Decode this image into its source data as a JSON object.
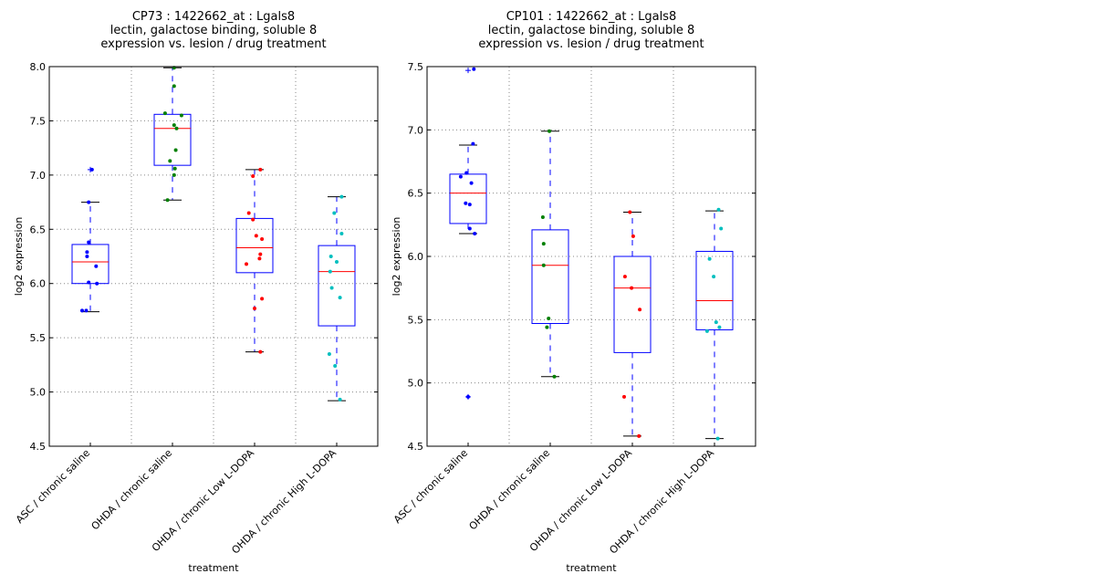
{
  "chart_data": [
    {
      "type": "box",
      "title_lines": [
        "CP73 : 1422662_at : Lgals8",
        "lectin, galactose binding, soluble 8",
        "expression vs. lesion / drug treatment"
      ],
      "xlabel": "treatment",
      "ylabel": "log2 expression",
      "ylim": [
        4.5,
        8.0
      ],
      "yticks": [
        "4.5",
        "5.0",
        "5.5",
        "6.0",
        "6.5",
        "7.0",
        "7.5",
        "8.0"
      ],
      "grid": true,
      "categories": [
        "ASC / chronic saline",
        "OHDA / chronic saline",
        "OHDA / chronic Low L-DOPA",
        "OHDA / chronic High L-DOPA"
      ],
      "colors": [
        "#0000ff",
        "#008000",
        "#ff0000",
        "#00bfbf"
      ],
      "boxes": [
        {
          "q1": 6.0,
          "median": 6.2,
          "q3": 6.36,
          "whisker_low": 5.74,
          "whisker_high": 6.75,
          "outliers": [
            7.05
          ]
        },
        {
          "q1": 7.09,
          "median": 7.43,
          "q3": 7.56,
          "whisker_low": 6.77,
          "whisker_high": 7.99,
          "outliers": []
        },
        {
          "q1": 6.1,
          "median": 6.33,
          "q3": 6.6,
          "whisker_low": 5.37,
          "whisker_high": 7.05,
          "outliers": []
        },
        {
          "q1": 5.61,
          "median": 6.11,
          "q3": 6.35,
          "whisker_low": 4.92,
          "whisker_high": 6.8,
          "outliers": []
        }
      ],
      "points": [
        [
          {
            "x": 0.02,
            "y": 7.05
          },
          {
            "x": -0.02,
            "y": 6.75
          },
          {
            "x": -0.02,
            "y": 6.38
          },
          {
            "x": -0.04,
            "y": 6.29
          },
          {
            "x": -0.04,
            "y": 6.25
          },
          {
            "x": 0.07,
            "y": 6.16
          },
          {
            "x": -0.02,
            "y": 6.01
          },
          {
            "x": 0.08,
            "y": 6.0
          },
          {
            "x": -0.1,
            "y": 5.75
          },
          {
            "x": -0.05,
            "y": 5.75
          }
        ],
        [
          {
            "x": 0.02,
            "y": 7.99
          },
          {
            "x": 0.02,
            "y": 7.82
          },
          {
            "x": -0.09,
            "y": 7.57
          },
          {
            "x": 0.11,
            "y": 7.55
          },
          {
            "x": 0.02,
            "y": 7.46
          },
          {
            "x": 0.05,
            "y": 7.43
          },
          {
            "x": 0.04,
            "y": 7.23
          },
          {
            "x": -0.03,
            "y": 7.13
          },
          {
            "x": 0.03,
            "y": 7.06
          },
          {
            "x": 0.02,
            "y": 7.0
          },
          {
            "x": -0.06,
            "y": 6.77
          }
        ],
        [
          {
            "x": 0.07,
            "y": 7.05
          },
          {
            "x": -0.02,
            "y": 6.99
          },
          {
            "x": -0.07,
            "y": 6.65
          },
          {
            "x": -0.02,
            "y": 6.59
          },
          {
            "x": 0.02,
            "y": 6.44
          },
          {
            "x": 0.09,
            "y": 6.41
          },
          {
            "x": 0.07,
            "y": 6.27
          },
          {
            "x": 0.06,
            "y": 6.23
          },
          {
            "x": -0.1,
            "y": 6.18
          },
          {
            "x": 0.09,
            "y": 5.86
          },
          {
            "x": 0.0,
            "y": 5.77
          },
          {
            "x": 0.07,
            "y": 5.37
          }
        ],
        [
          {
            "x": 0.06,
            "y": 6.8
          },
          {
            "x": -0.03,
            "y": 6.65
          },
          {
            "x": 0.06,
            "y": 6.46
          },
          {
            "x": -0.07,
            "y": 6.25
          },
          {
            "x": 0.0,
            "y": 6.2
          },
          {
            "x": -0.08,
            "y": 6.11
          },
          {
            "x": -0.06,
            "y": 5.96
          },
          {
            "x": 0.04,
            "y": 5.87
          },
          {
            "x": -0.09,
            "y": 5.35
          },
          {
            "x": -0.02,
            "y": 5.24
          },
          {
            "x": 0.04,
            "y": 4.93
          }
        ]
      ]
    },
    {
      "type": "box",
      "title_lines": [
        "CP101 : 1422662_at : Lgals8",
        "lectin, galactose binding, soluble 8",
        "expression vs. lesion / drug treatment"
      ],
      "xlabel": "treatment",
      "ylabel": "log2 expression",
      "ylim": [
        4.5,
        7.5
      ],
      "yticks": [
        "4.5",
        "5.0",
        "5.5",
        "6.0",
        "6.5",
        "7.0",
        "7.5"
      ],
      "grid": true,
      "categories": [
        "ASC / chronic saline",
        "OHDA / chronic saline",
        "OHDA / chronic Low L-DOPA",
        "OHDA / chronic High L-DOPA"
      ],
      "colors": [
        "#0000ff",
        "#008000",
        "#ff0000",
        "#00bfbf"
      ],
      "boxes": [
        {
          "q1": 6.26,
          "median": 6.5,
          "q3": 6.65,
          "whisker_low": 6.18,
          "whisker_high": 6.88,
          "outliers": [
            7.47,
            4.89
          ]
        },
        {
          "q1": 5.47,
          "median": 5.93,
          "q3": 6.21,
          "whisker_low": 5.05,
          "whisker_high": 6.99,
          "outliers": []
        },
        {
          "q1": 5.24,
          "median": 5.75,
          "q3": 6.0,
          "whisker_low": 4.58,
          "whisker_high": 6.35,
          "outliers": []
        },
        {
          "q1": 5.42,
          "median": 5.65,
          "q3": 6.04,
          "whisker_low": 4.56,
          "whisker_high": 6.36,
          "outliers": []
        }
      ],
      "points": [
        [
          {
            "x": 0.07,
            "y": 7.48
          },
          {
            "x": 0.06,
            "y": 6.89
          },
          {
            "x": -0.02,
            "y": 6.66
          },
          {
            "x": -0.09,
            "y": 6.63
          },
          {
            "x": 0.04,
            "y": 6.58
          },
          {
            "x": -0.03,
            "y": 6.42
          },
          {
            "x": 0.02,
            "y": 6.41
          },
          {
            "x": 0.02,
            "y": 6.22
          },
          {
            "x": 0.08,
            "y": 6.18
          },
          {
            "x": 0.0,
            "y": 4.89
          }
        ],
        [
          {
            "x": -0.01,
            "y": 6.99
          },
          {
            "x": -0.09,
            "y": 6.31
          },
          {
            "x": -0.08,
            "y": 6.1
          },
          {
            "x": -0.08,
            "y": 5.93
          },
          {
            "x": -0.02,
            "y": 5.51
          },
          {
            "x": -0.04,
            "y": 5.44
          },
          {
            "x": 0.05,
            "y": 5.05
          }
        ],
        [
          {
            "x": -0.03,
            "y": 6.35
          },
          {
            "x": 0.01,
            "y": 6.16
          },
          {
            "x": -0.09,
            "y": 5.84
          },
          {
            "x": -0.01,
            "y": 5.75
          },
          {
            "x": 0.09,
            "y": 5.58
          },
          {
            "x": -0.1,
            "y": 4.89
          },
          {
            "x": 0.08,
            "y": 4.58
          }
        ],
        [
          {
            "x": 0.05,
            "y": 6.37
          },
          {
            "x": 0.08,
            "y": 6.22
          },
          {
            "x": -0.06,
            "y": 5.98
          },
          {
            "x": -0.01,
            "y": 5.84
          },
          {
            "x": 0.02,
            "y": 5.48
          },
          {
            "x": 0.06,
            "y": 5.44
          },
          {
            "x": -0.09,
            "y": 5.41
          },
          {
            "x": 0.04,
            "y": 4.56
          }
        ]
      ]
    }
  ]
}
